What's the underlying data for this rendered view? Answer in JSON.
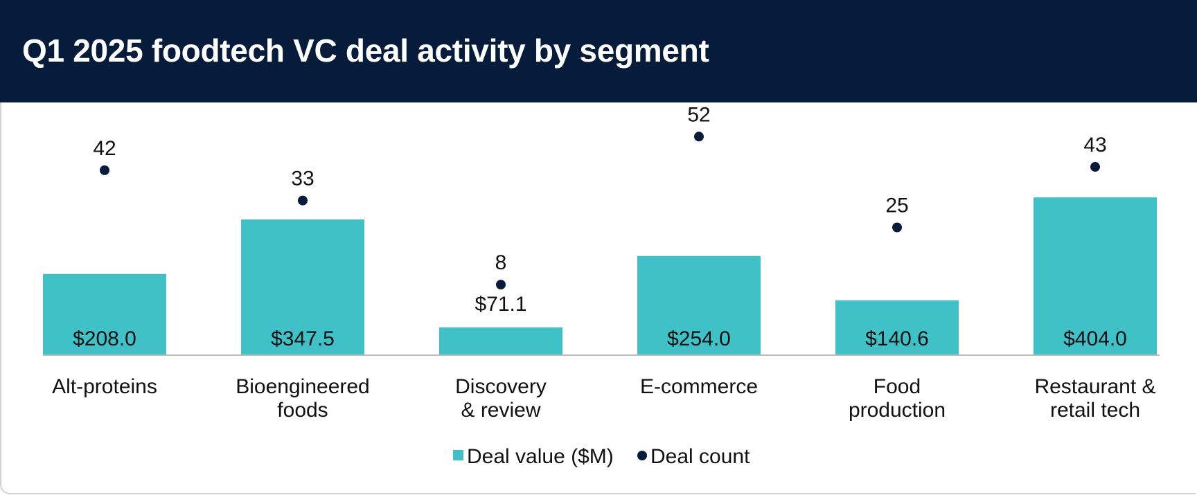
{
  "title": "Q1 2025 foodtech VC deal activity by segment",
  "colors": {
    "header_bg": "#061c3a",
    "bar": "#40c1c8",
    "dot": "#061c3a",
    "axis": "#bdbdbd",
    "text": "#111111"
  },
  "chart_data": {
    "type": "bar",
    "title": "Q1 2025 foodtech VC deal activity by segment",
    "categories": [
      [
        "Alt-proteins"
      ],
      [
        "Bioengineered",
        "foods"
      ],
      [
        "Discovery",
        "& review"
      ],
      [
        "E-commerce"
      ],
      [
        "Food",
        "production"
      ],
      [
        "Restaurant &",
        "retail tech"
      ]
    ],
    "series": [
      {
        "name": "Deal value ($M)",
        "kind": "bar",
        "values": [
          208.0,
          347.5,
          71.1,
          254.0,
          140.6,
          404.0
        ],
        "labels": [
          "$208.0",
          "$347.5",
          "$71.1",
          "$254.0",
          "$140.6",
          "$404.0"
        ]
      },
      {
        "name": "Deal count",
        "kind": "dot",
        "values": [
          42,
          33,
          8,
          52,
          25,
          43
        ],
        "labels": [
          "42",
          "33",
          "8",
          "52",
          "25",
          "43"
        ]
      }
    ],
    "value_axis_range": [
      0,
      450
    ],
    "count_axis_range": [
      0,
      57
    ],
    "legend": {
      "position": "bottom-center",
      "items": [
        "Deal value ($M)",
        "Deal count"
      ]
    },
    "xlabel": "",
    "ylabel": ""
  }
}
